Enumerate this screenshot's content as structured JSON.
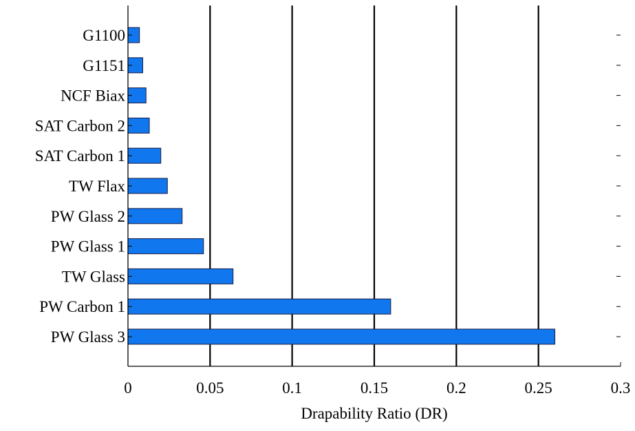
{
  "chart_data": {
    "type": "bar",
    "orientation": "horizontal",
    "categories": [
      "G1100",
      "G1151",
      "NCF Biax",
      "SAT Carbon 2",
      "SAT Carbon 1",
      "TW Flax",
      "PW Glass 2",
      "PW Glass 1",
      "TW Glass",
      "PW Carbon 1",
      "PW Glass 3"
    ],
    "values": [
      0.007,
      0.009,
      0.011,
      0.013,
      0.02,
      0.024,
      0.033,
      0.046,
      0.064,
      0.16,
      0.26
    ],
    "xlabel": "Drapability Ratio (DR)",
    "ylabel": "",
    "xlim": [
      0,
      0.3
    ],
    "xticks": [
      0,
      0.05,
      0.1,
      0.15,
      0.2,
      0.25,
      0.3
    ],
    "xtick_labels": [
      "0",
      "0.05",
      "0.1",
      "0.15",
      "0.2",
      "0.25",
      "0.3"
    ],
    "grid": "vertical",
    "legend": "none",
    "bar_color": "#1177ee",
    "bar_edge_color": "#1a1a40",
    "grid_color": "#000000"
  }
}
